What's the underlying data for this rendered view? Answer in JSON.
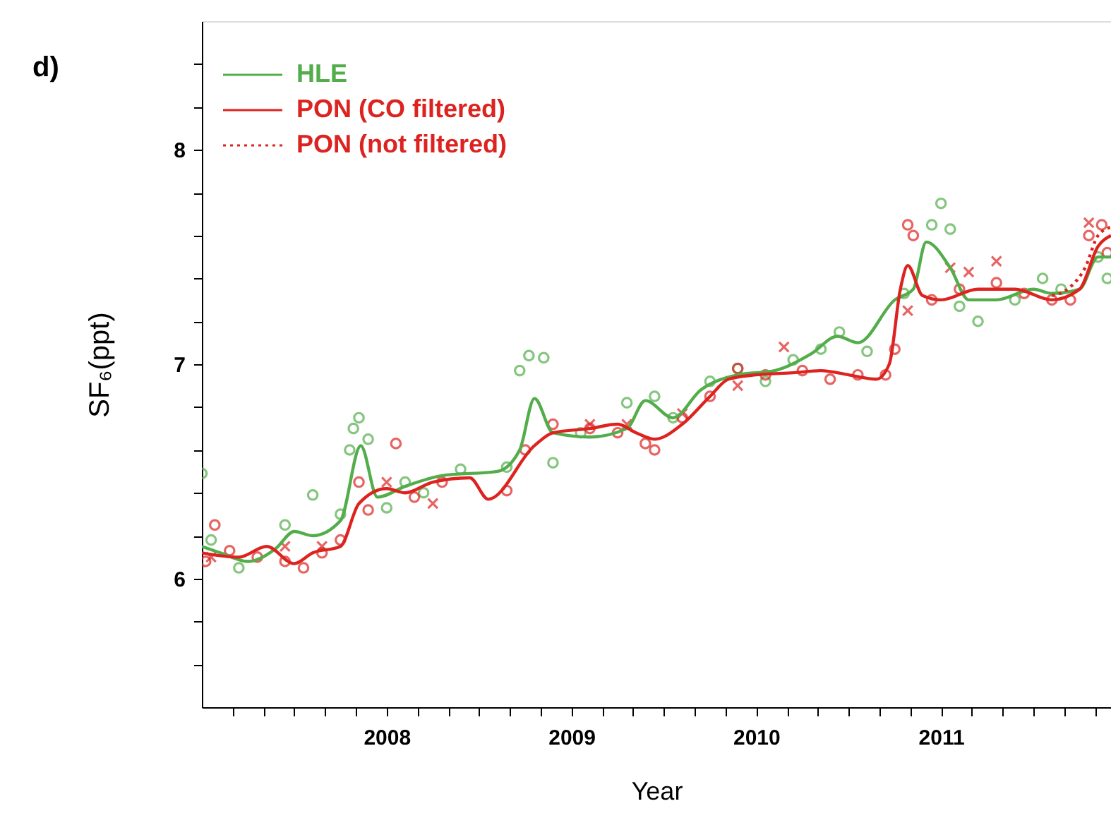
{
  "chart_data": {
    "type": "line",
    "title": "d)",
    "xlabel": "Year",
    "ylabel": "SF₆(ppt)",
    "xlim": [
      2007.0,
      2011.92
    ],
    "ylim": [
      5.4,
      8.6
    ],
    "xticks": [
      {
        "value": 2007.1667,
        "label": null
      },
      {
        "value": 2007.3333,
        "label": null
      },
      {
        "value": 2007.5,
        "label": null
      },
      {
        "value": 2007.6667,
        "label": null
      },
      {
        "value": 2007.8333,
        "label": null
      },
      2008,
      {
        "value": 2008.1667,
        "label": null
      },
      {
        "value": 2008.3333,
        "label": null
      },
      {
        "value": 2008.5,
        "label": null
      },
      {
        "value": 2008.6667,
        "label": null
      },
      {
        "value": 2008.8333,
        "label": null
      },
      2009,
      {
        "value": 2009.1667,
        "label": null
      },
      {
        "value": 2009.3333,
        "label": null
      },
      {
        "value": 2009.5,
        "label": null
      },
      {
        "value": 2009.6667,
        "label": null
      },
      {
        "value": 2009.8333,
        "label": null
      },
      2010,
      {
        "value": 2010.1667,
        "label": null
      },
      {
        "value": 2010.3333,
        "label": null
      },
      {
        "value": 2010.5,
        "label": null
      },
      {
        "value": 2010.6667,
        "label": null
      },
      {
        "value": 2010.8333,
        "label": null
      },
      2011,
      {
        "value": 2011.1667,
        "label": null
      },
      {
        "value": 2011.3333,
        "label": null
      },
      {
        "value": 2011.5,
        "label": null
      },
      {
        "value": 2011.6667,
        "label": null
      },
      {
        "value": 2011.8333,
        "label": null
      }
    ],
    "yticks": [
      {
        "value": 5.6,
        "label": null
      },
      {
        "value": 5.8,
        "label": null
      },
      6,
      {
        "value": 6.2,
        "label": null
      },
      {
        "value": 6.4,
        "label": null
      },
      {
        "value": 6.6,
        "label": null
      },
      {
        "value": 6.8,
        "label": null
      },
      7,
      {
        "value": 7.2,
        "label": null
      },
      {
        "value": 7.4,
        "label": null
      },
      {
        "value": 7.6,
        "label": null
      },
      {
        "value": 7.8,
        "label": null
      },
      8,
      {
        "value": 8.2,
        "label": null
      },
      {
        "value": 8.4,
        "label": null
      }
    ],
    "grid": false,
    "legend": "top left",
    "series": [
      {
        "type": "scatter",
        "marker": "circle",
        "color": "#52ad4a",
        "x": [
          2007.0,
          2007.05,
          2007.2,
          2007.45,
          2007.6,
          2007.75,
          2007.8,
          2007.82,
          2007.85,
          2007.9,
          2008.0,
          2008.1,
          2008.2,
          2008.4,
          2008.65,
          2008.72,
          2008.77,
          2008.85,
          2008.9,
          2009.05,
          2009.3,
          2009.45,
          2009.55,
          2009.75,
          2009.9,
          2010.05,
          2010.2,
          2010.35,
          2010.45,
          2010.6,
          2010.8,
          2010.95,
          2011.0,
          2011.05,
          2011.1,
          2011.2,
          2011.4,
          2011.55,
          2011.65,
          2011.85,
          2011.9
        ],
        "values": [
          6.49,
          6.18,
          6.05,
          6.25,
          6.39,
          6.3,
          6.6,
          6.7,
          6.75,
          6.65,
          6.33,
          6.45,
          6.4,
          6.51,
          6.52,
          6.97,
          7.04,
          7.03,
          6.54,
          6.68,
          6.82,
          6.85,
          6.75,
          6.92,
          6.98,
          6.92,
          7.02,
          7.07,
          7.15,
          7.06,
          7.33,
          7.65,
          7.75,
          7.63,
          7.27,
          7.2,
          7.3,
          7.4,
          7.35,
          7.5,
          7.4
        ]
      },
      {
        "type": "scatter",
        "marker": "circle",
        "color": "#dc2320",
        "x": [
          2007.02,
          2007.07,
          2007.15,
          2007.3,
          2007.45,
          2007.55,
          2007.65,
          2007.75,
          2007.85,
          2007.9,
          2008.05,
          2008.15,
          2008.3,
          2008.65,
          2008.75,
          2008.9,
          2009.1,
          2009.25,
          2009.4,
          2009.45,
          2009.6,
          2009.75,
          2009.9,
          2010.05,
          2010.25,
          2010.4,
          2010.55,
          2010.7,
          2010.75,
          2010.82,
          2010.85,
          2010.95,
          2011.1,
          2011.3,
          2011.45,
          2011.6,
          2011.7,
          2011.8,
          2011.87,
          2011.9
        ],
        "values": [
          6.08,
          6.25,
          6.13,
          6.1,
          6.08,
          6.05,
          6.12,
          6.18,
          6.45,
          6.32,
          6.63,
          6.38,
          6.45,
          6.41,
          6.6,
          6.72,
          6.7,
          6.68,
          6.63,
          6.6,
          6.75,
          6.85,
          6.98,
          6.95,
          6.97,
          6.93,
          6.95,
          6.95,
          7.07,
          7.65,
          7.6,
          7.3,
          7.35,
          7.38,
          7.33,
          7.3,
          7.3,
          7.6,
          7.65,
          7.52
        ]
      },
      {
        "type": "scatter",
        "marker": "cross",
        "color": "#dc2320",
        "x": [
          2007.05,
          2007.45,
          2007.65,
          2008.0,
          2008.25,
          2009.1,
          2009.3,
          2009.6,
          2009.9,
          2010.15,
          2010.82,
          2011.05,
          2011.15,
          2011.3,
          2011.8
        ],
        "values": [
          6.1,
          6.15,
          6.15,
          6.45,
          6.35,
          6.72,
          6.72,
          6.77,
          6.9,
          7.08,
          7.25,
          7.45,
          7.43,
          7.48,
          7.66
        ]
      },
      {
        "type": "line",
        "name": "HLE",
        "color": "#52ad4a",
        "line_style": "solid",
        "x": [
          2007.0,
          2007.1,
          2007.25,
          2007.4,
          2007.5,
          2007.6,
          2007.75,
          2007.86,
          2007.95,
          2008.1,
          2008.3,
          2008.6,
          2008.72,
          2008.8,
          2008.9,
          2009.1,
          2009.3,
          2009.4,
          2009.55,
          2009.7,
          2009.9,
          2010.1,
          2010.3,
          2010.44,
          2010.55,
          2010.75,
          2010.85,
          2010.92,
          2011.05,
          2011.15,
          2011.3,
          2011.5,
          2011.6,
          2011.75,
          2011.85,
          2011.92
        ],
        "values": [
          6.15,
          6.12,
          6.08,
          6.14,
          6.22,
          6.2,
          6.27,
          6.62,
          6.38,
          6.43,
          6.48,
          6.5,
          6.6,
          6.84,
          6.68,
          6.66,
          6.7,
          6.83,
          6.75,
          6.88,
          6.95,
          6.97,
          7.05,
          7.13,
          7.1,
          7.3,
          7.35,
          7.57,
          7.45,
          7.3,
          7.3,
          7.35,
          7.33,
          7.35,
          7.5,
          7.5
        ]
      },
      {
        "type": "line",
        "name": "PON (CO filtered)",
        "color": "#dc2320",
        "line_style": "solid",
        "x": [
          2007.0,
          2007.2,
          2007.35,
          2007.5,
          2007.6,
          2007.75,
          2007.85,
          2008.0,
          2008.1,
          2008.25,
          2008.45,
          2008.55,
          2008.8,
          2008.9,
          2009.1,
          2009.25,
          2009.35,
          2009.45,
          2009.6,
          2009.75,
          2009.85,
          2010.0,
          2010.2,
          2010.35,
          2010.5,
          2010.65,
          2010.72,
          2010.78,
          2010.82,
          2010.9,
          2011.0,
          2011.2,
          2011.4,
          2011.6,
          2011.75,
          2011.85,
          2011.92
        ],
        "values": [
          6.12,
          6.1,
          6.15,
          6.07,
          6.12,
          6.15,
          6.35,
          6.42,
          6.4,
          6.45,
          6.47,
          6.37,
          6.62,
          6.68,
          6.7,
          6.72,
          6.68,
          6.65,
          6.72,
          6.85,
          6.93,
          6.95,
          6.96,
          6.97,
          6.95,
          6.93,
          7.0,
          7.35,
          7.46,
          7.32,
          7.3,
          7.35,
          7.35,
          7.3,
          7.35,
          7.55,
          7.6
        ]
      },
      {
        "type": "line",
        "name": "PON (not filtered)",
        "color": "#dc2320",
        "line_style": "dotted",
        "x": [
          2011.6,
          2011.7,
          2011.78,
          2011.85,
          2011.92
        ],
        "values": [
          7.32,
          7.36,
          7.45,
          7.6,
          7.64
        ]
      }
    ]
  }
}
